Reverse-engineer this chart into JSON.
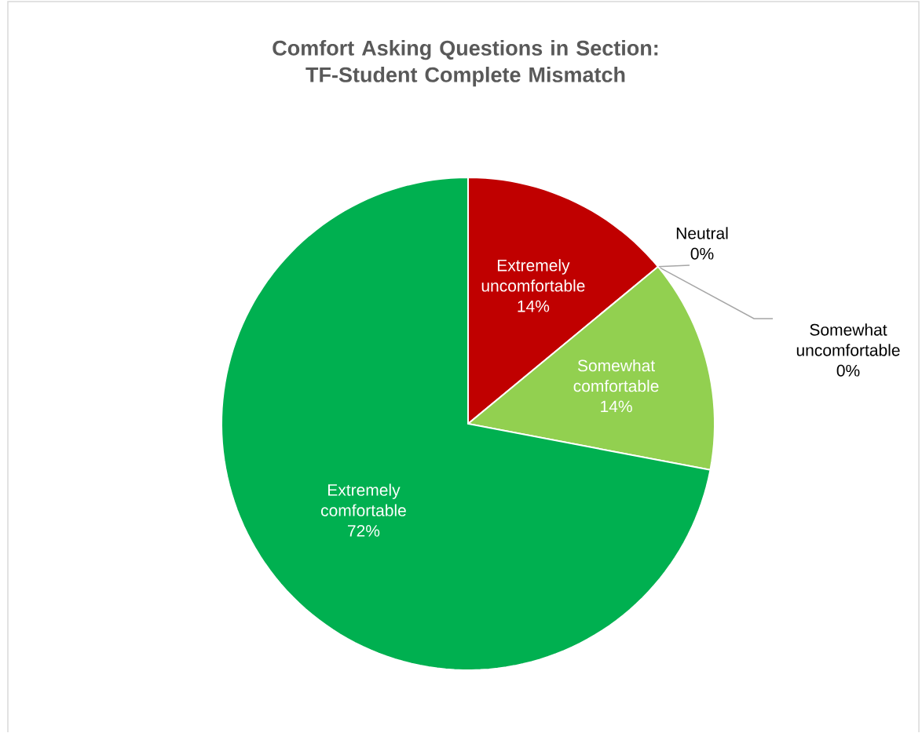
{
  "chart_data": {
    "type": "pie",
    "title": "Comfort Asking Questions in Section:\nTF-Student Complete Mismatch",
    "categories": [
      "Extremely\nuncomfortable",
      "Neutral",
      "Somewhat\nuncomfortable",
      "Somewhat\ncomfortable",
      "Extremely\ncomfortable"
    ],
    "values": [
      14,
      0,
      0,
      14,
      72
    ],
    "value_labels": [
      "14%",
      "0%",
      "0%",
      "14%",
      "72%"
    ],
    "colors": [
      "#c00000",
      "#a6a6a6",
      "#ffc000",
      "#92d050",
      "#00b050"
    ]
  }
}
